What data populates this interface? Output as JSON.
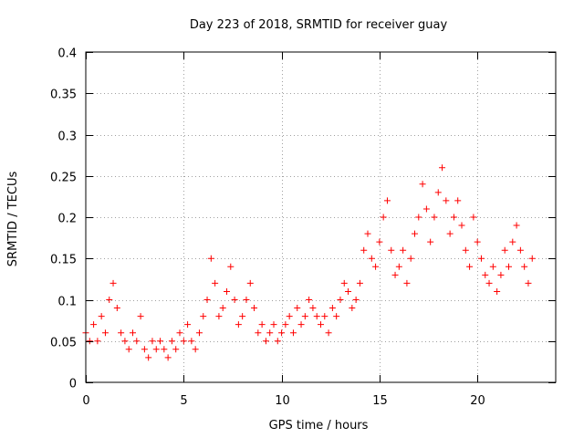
{
  "chart_data": {
    "type": "scatter",
    "title": "Day 223 of 2018, SRMTID for receiver guay",
    "xlabel": "GPS time / hours",
    "ylabel": "SRMTID / TECUs",
    "xlim": [
      0,
      24
    ],
    "ylim": [
      0,
      0.4
    ],
    "xticks": [
      0,
      5,
      10,
      15,
      20
    ],
    "xtick_labels": [
      "0",
      "5",
      "10",
      "15",
      "20"
    ],
    "yticks": [
      0,
      0.05,
      0.1,
      0.15,
      0.2,
      0.25,
      0.3,
      0.35,
      0.4
    ],
    "ytick_labels": [
      "0",
      "0.05",
      "0.1",
      "0.15",
      "0.2",
      "0.25",
      "0.3",
      "0.35",
      "0.4"
    ],
    "grid": true,
    "marker": "+",
    "marker_color": "#ff0000",
    "series": [
      {
        "name": "SRMTID",
        "x": [
          0.0,
          0.2,
          0.4,
          0.6,
          0.8,
          1.0,
          1.2,
          1.4,
          1.6,
          1.8,
          2.0,
          2.2,
          2.4,
          2.6,
          2.8,
          3.0,
          3.2,
          3.4,
          3.6,
          3.8,
          4.0,
          4.2,
          4.4,
          4.6,
          4.8,
          5.0,
          5.2,
          5.4,
          5.6,
          5.8,
          6.0,
          6.2,
          6.4,
          6.6,
          6.8,
          7.0,
          7.2,
          7.4,
          7.6,
          7.8,
          8.0,
          8.2,
          8.4,
          8.6,
          8.8,
          9.0,
          9.2,
          9.4,
          9.6,
          9.8,
          10.0,
          10.2,
          10.4,
          10.6,
          10.8,
          11.0,
          11.2,
          11.4,
          11.6,
          11.8,
          12.0,
          12.2,
          12.4,
          12.6,
          12.8,
          13.0,
          13.2,
          13.4,
          13.6,
          13.8,
          14.0,
          14.2,
          14.4,
          14.6,
          14.8,
          15.0,
          15.2,
          15.4,
          15.6,
          15.8,
          16.0,
          16.2,
          16.4,
          16.6,
          16.8,
          17.0,
          17.2,
          17.4,
          17.6,
          17.8,
          18.0,
          18.2,
          18.4,
          18.6,
          18.8,
          19.0,
          19.2,
          19.4,
          19.6,
          19.8,
          20.0,
          20.2,
          20.4,
          20.6,
          20.8,
          21.0,
          21.2,
          21.4,
          21.6,
          21.8,
          22.0,
          22.2,
          22.4,
          22.6,
          22.8
        ],
        "y": [
          0.06,
          0.05,
          0.07,
          0.05,
          0.08,
          0.06,
          0.1,
          0.12,
          0.09,
          0.06,
          0.05,
          0.04,
          0.06,
          0.05,
          0.08,
          0.04,
          0.03,
          0.05,
          0.04,
          0.05,
          0.04,
          0.03,
          0.05,
          0.04,
          0.06,
          0.05,
          0.07,
          0.05,
          0.04,
          0.06,
          0.08,
          0.1,
          0.15,
          0.12,
          0.08,
          0.09,
          0.11,
          0.14,
          0.1,
          0.07,
          0.08,
          0.1,
          0.12,
          0.09,
          0.06,
          0.07,
          0.05,
          0.06,
          0.07,
          0.05,
          0.06,
          0.07,
          0.08,
          0.06,
          0.09,
          0.07,
          0.08,
          0.1,
          0.09,
          0.08,
          0.07,
          0.08,
          0.06,
          0.09,
          0.08,
          0.1,
          0.12,
          0.11,
          0.09,
          0.1,
          0.12,
          0.16,
          0.18,
          0.15,
          0.14,
          0.17,
          0.2,
          0.22,
          0.16,
          0.13,
          0.14,
          0.16,
          0.12,
          0.15,
          0.18,
          0.2,
          0.24,
          0.21,
          0.17,
          0.2,
          0.23,
          0.26,
          0.22,
          0.18,
          0.2,
          0.22,
          0.19,
          0.16,
          0.14,
          0.2,
          0.17,
          0.15,
          0.13,
          0.12,
          0.14,
          0.11,
          0.13,
          0.16,
          0.14,
          0.17,
          0.19,
          0.16,
          0.14,
          0.12,
          0.15
        ]
      }
    ]
  }
}
